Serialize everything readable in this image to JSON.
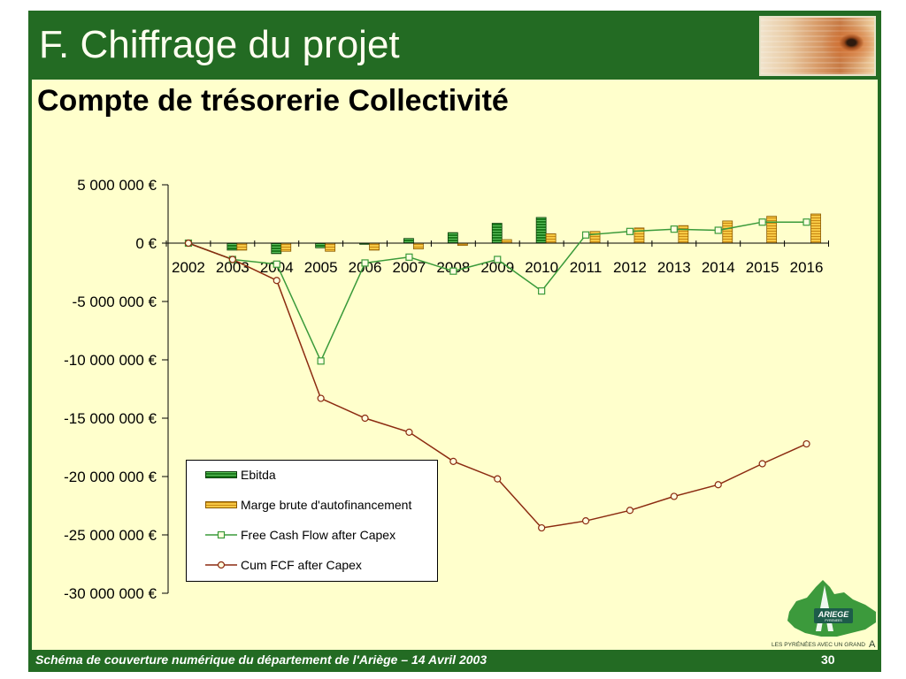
{
  "slide": {
    "title": "F. Chiffrage du projet",
    "subtitle": "Compte de trésorerie Collectivité",
    "footer_text": "Schéma de couverture numérique du département de l'Ariège – 14 Avril 2003",
    "page_number": "30"
  },
  "logo": {
    "name": "ARIEGE",
    "name_sub": "PYRENEES",
    "tagline": "LES PYRÉNÉES AVEC UN GRAND",
    "tagline_letter": "A"
  },
  "colors": {
    "frame": "#236b23",
    "content_background": "#ffffcc",
    "title_text": "#fffff0",
    "footer_text": "#ffffff"
  },
  "chart_data": {
    "type": "bar",
    "title": "",
    "xlabel": "",
    "ylabel": "",
    "categories": [
      "2002",
      "2003",
      "2004",
      "2005",
      "2006",
      "2007",
      "2008",
      "2009",
      "2010",
      "2011",
      "2012",
      "2013",
      "2014",
      "2015",
      "2016"
    ],
    "series": [
      {
        "name": "Ebitda",
        "type": "bar",
        "color": "#1b7a1b",
        "values": [
          0,
          -600000,
          -900000,
          -400000,
          -100000,
          400000,
          900000,
          1700000,
          2200000,
          null,
          null,
          null,
          null,
          null,
          null
        ]
      },
      {
        "name": "Marge brute d'autofinancement",
        "type": "bar",
        "color": "#f6c844",
        "values": [
          0,
          -600000,
          -700000,
          -700000,
          -600000,
          -500000,
          -200000,
          300000,
          800000,
          1000000,
          1300000,
          1500000,
          1900000,
          2300000,
          2500000
        ]
      },
      {
        "name": "Free Cash Flow after Capex",
        "type": "line",
        "marker": "square",
        "color": "#3a9a3a",
        "values": [
          0,
          -1400000,
          -1800000,
          -10100000,
          -1700000,
          -1200000,
          -2400000,
          -1400000,
          -4100000,
          700000,
          1000000,
          1200000,
          1100000,
          1800000,
          1800000
        ]
      },
      {
        "name": "Cum FCF after Capex",
        "type": "line",
        "marker": "circle",
        "color": "#8b2a10",
        "values": [
          0,
          -1400000,
          -3200000,
          -13300000,
          -15000000,
          -16200000,
          -18700000,
          -20200000,
          -24400000,
          -23800000,
          -22900000,
          -21700000,
          -20700000,
          -18900000,
          -17200000
        ]
      }
    ],
    "ylim": [
      -30000000,
      5000000
    ],
    "yticks": [
      5000000,
      0,
      -5000000,
      -10000000,
      -15000000,
      -20000000,
      -25000000,
      -30000000
    ],
    "ytick_labels": [
      "5 000 000 €",
      "0 €",
      "-5 000 000 €",
      "-10 000 000 €",
      "-15 000 000 €",
      "-20 000 000 €",
      "-25 000 000 €",
      "-30 000 000 €"
    ],
    "grid": false,
    "legend_position": "bottom-left"
  }
}
